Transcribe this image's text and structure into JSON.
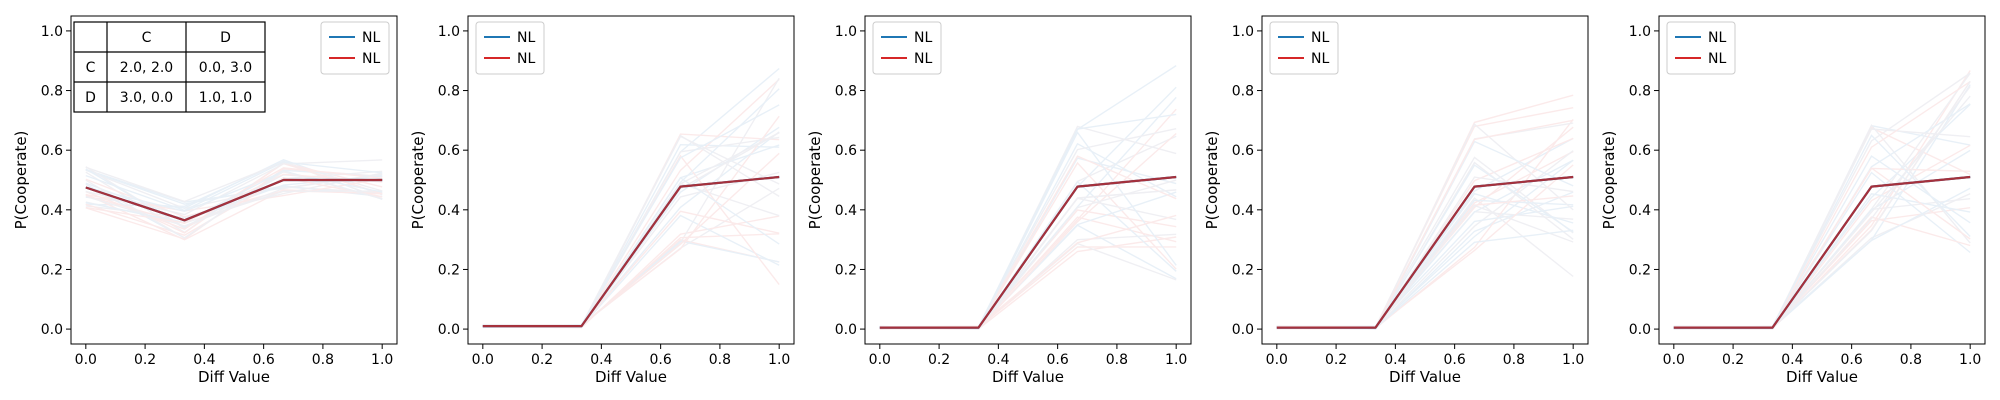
{
  "colors": {
    "blue": "#1f77b4",
    "red": "#d62728",
    "dark_red": "#a5313c",
    "bg": "#ffffff",
    "faint": "#c8c8d4"
  },
  "chart_data": [
    {
      "type": "line",
      "xlabel": "Diff Value",
      "ylabel": "P(Cooperate)",
      "xlim": [
        -0.05,
        1.05
      ],
      "ylim": [
        -0.05,
        1.05
      ],
      "xticks": [
        "0.0",
        "0.2",
        "0.4",
        "0.6",
        "0.8",
        "1.0"
      ],
      "yticks": [
        "0.0",
        "0.2",
        "0.4",
        "0.6",
        "0.8",
        "1.0"
      ],
      "x": [
        0.0,
        0.333,
        0.667,
        1.0
      ],
      "series": [
        {
          "name": "NL",
          "color": "#1f77b4",
          "values": [
            0.475,
            0.365,
            0.5,
            0.5
          ]
        },
        {
          "name": "NL",
          "color": "#d62728",
          "values": [
            0.475,
            0.365,
            0.5,
            0.5
          ]
        }
      ],
      "legend": "upper right",
      "payoff_table": {
        "col_headers": [
          "",
          "C",
          "D"
        ],
        "rows": [
          [
            "C",
            "2.0, 2.0",
            "0.0, 3.0"
          ],
          [
            "D",
            "3.0, 0.0",
            "1.0, 1.0"
          ]
        ]
      }
    },
    {
      "type": "line",
      "xlabel": "Diff Value",
      "ylabel": "P(Cooperate)",
      "xlim": [
        -0.05,
        1.05
      ],
      "ylim": [
        -0.05,
        1.05
      ],
      "xticks": [
        "0.0",
        "0.2",
        "0.4",
        "0.6",
        "0.8",
        "1.0"
      ],
      "yticks": [
        "0.0",
        "0.2",
        "0.4",
        "0.6",
        "0.8",
        "1.0"
      ],
      "x": [
        0.0,
        0.333,
        0.667,
        1.0
      ],
      "series": [
        {
          "name": "NL",
          "color": "#1f77b4",
          "values": [
            0.01,
            0.01,
            0.478,
            0.51
          ]
        },
        {
          "name": "NL",
          "color": "#d62728",
          "values": [
            0.01,
            0.01,
            0.478,
            0.51
          ]
        }
      ],
      "legend": "upper left"
    },
    {
      "type": "line",
      "xlabel": "Diff Value",
      "ylabel": "P(Cooperate)",
      "xlim": [
        -0.05,
        1.05
      ],
      "ylim": [
        -0.05,
        1.05
      ],
      "xticks": [
        "0.0",
        "0.2",
        "0.4",
        "0.6",
        "0.8",
        "1.0"
      ],
      "yticks": [
        "0.0",
        "0.2",
        "0.4",
        "0.6",
        "0.8",
        "1.0"
      ],
      "x": [
        0.0,
        0.333,
        0.667,
        1.0
      ],
      "series": [
        {
          "name": "NL",
          "color": "#1f77b4",
          "values": [
            0.005,
            0.005,
            0.478,
            0.51
          ]
        },
        {
          "name": "NL",
          "color": "#d62728",
          "values": [
            0.005,
            0.005,
            0.478,
            0.51
          ]
        }
      ],
      "legend": "upper left"
    },
    {
      "type": "line",
      "xlabel": "Diff Value",
      "ylabel": "P(Cooperate)",
      "xlim": [
        -0.05,
        1.05
      ],
      "ylim": [
        -0.05,
        1.05
      ],
      "xticks": [
        "0.0",
        "0.2",
        "0.4",
        "0.6",
        "0.8",
        "1.0"
      ],
      "yticks": [
        "0.0",
        "0.2",
        "0.4",
        "0.6",
        "0.8",
        "1.0"
      ],
      "x": [
        0.0,
        0.333,
        0.667,
        1.0
      ],
      "series": [
        {
          "name": "NL",
          "color": "#1f77b4",
          "values": [
            0.005,
            0.005,
            0.478,
            0.51
          ]
        },
        {
          "name": "NL",
          "color": "#d62728",
          "values": [
            0.005,
            0.005,
            0.478,
            0.51
          ]
        }
      ],
      "legend": "upper left"
    },
    {
      "type": "line",
      "xlabel": "Diff Value",
      "ylabel": "P(Cooperate)",
      "xlim": [
        -0.05,
        1.05
      ],
      "ylim": [
        -0.05,
        1.05
      ],
      "xticks": [
        "0.0",
        "0.2",
        "0.4",
        "0.6",
        "0.8",
        "1.0"
      ],
      "yticks": [
        "0.0",
        "0.2",
        "0.4",
        "0.6",
        "0.8",
        "1.0"
      ],
      "x": [
        0.0,
        0.333,
        0.667,
        1.0
      ],
      "series": [
        {
          "name": "NL",
          "color": "#1f77b4",
          "values": [
            0.005,
            0.005,
            0.478,
            0.51
          ]
        },
        {
          "name": "NL",
          "color": "#d62728",
          "values": [
            0.005,
            0.005,
            0.478,
            0.51
          ]
        }
      ],
      "legend": "upper left"
    }
  ]
}
